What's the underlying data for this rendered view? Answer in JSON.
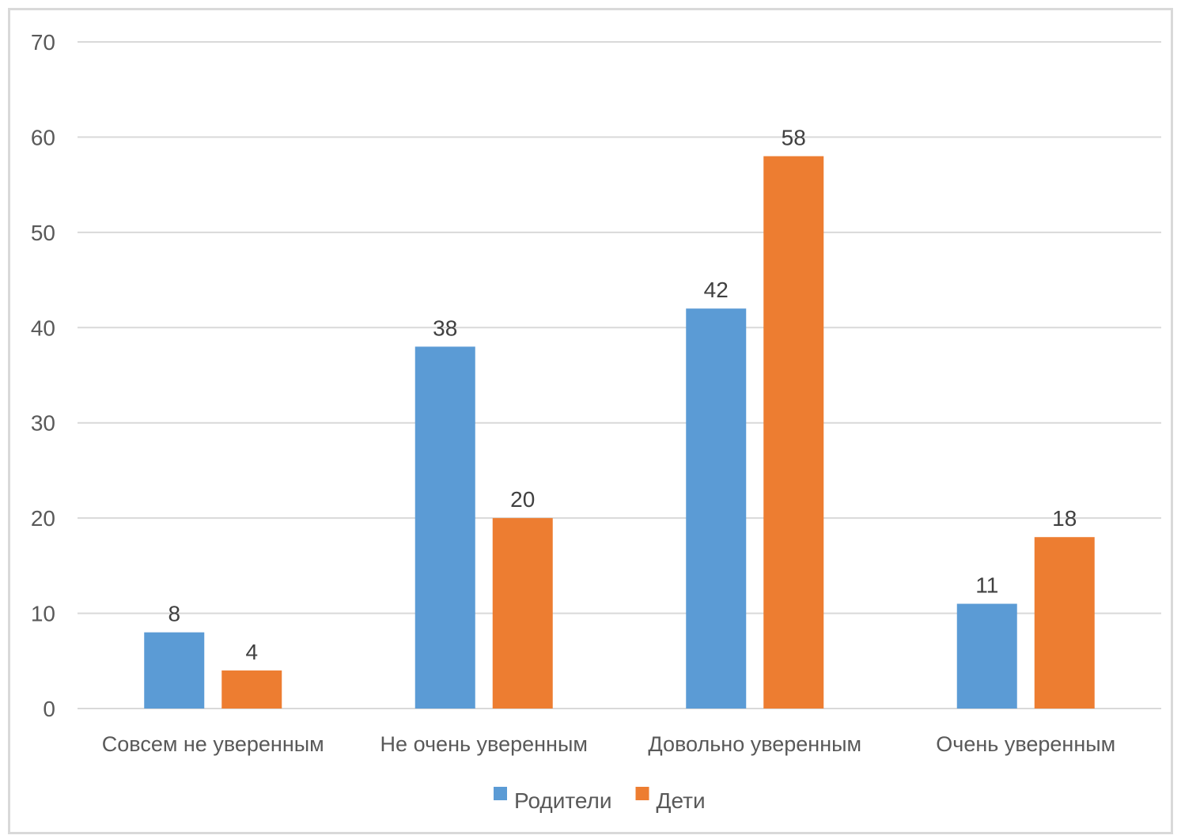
{
  "chart_data": {
    "type": "bar",
    "categories": [
      "Совсем не уверенным",
      "Не очень уверенным",
      "Довольно уверенным",
      "Очень уверенным"
    ],
    "series": [
      {
        "name": "Родители",
        "values": [
          8,
          38,
          42,
          11
        ],
        "color": "#5b9bd5"
      },
      {
        "name": "Дети",
        "values": [
          4,
          20,
          58,
          18
        ],
        "color": "#ed7d31"
      }
    ],
    "ylim": [
      0,
      70
    ],
    "yticks": [
      0,
      10,
      20,
      30,
      40,
      50,
      60,
      70
    ],
    "grid": true,
    "legend_position": "bottom"
  }
}
